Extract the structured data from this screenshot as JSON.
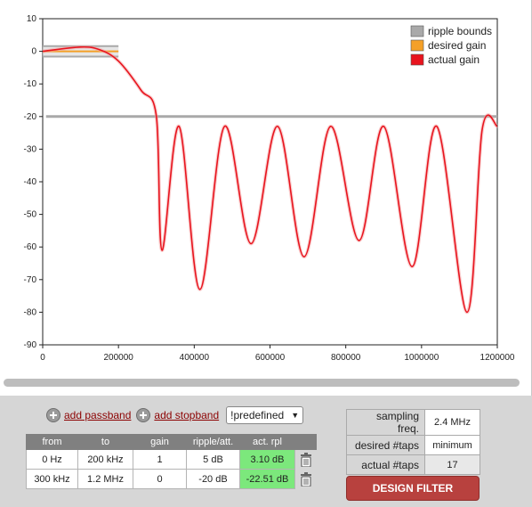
{
  "chart_data": {
    "type": "line",
    "x_ticks": [
      "0",
      "200000",
      "400000",
      "600000",
      "800000",
      "1000000",
      "1200000"
    ],
    "y_ticks": [
      "10",
      "0",
      "-10",
      "-20",
      "-30",
      "-40",
      "-50",
      "-60",
      "-70",
      "-80",
      "-90"
    ],
    "xlim": [
      0,
      1200000
    ],
    "ylim": [
      -90,
      10
    ],
    "grid": false,
    "legend_position": "top-right",
    "legend": [
      {
        "name": "ripple bounds",
        "color": "#a9a9a9"
      },
      {
        "name": "desired gain",
        "color": "#f4a028"
      },
      {
        "name": "actual gain",
        "color": "#e8141e"
      }
    ],
    "ripple_bounds": [
      {
        "x": [
          0,
          200000
        ],
        "upper": 1.6,
        "lower": -1.6
      },
      {
        "x": [
          300000,
          1200000
        ],
        "level": -20
      }
    ],
    "desired_gain": [
      {
        "x": [
          0,
          200000
        ],
        "y": 0
      }
    ],
    "actual_gain": {
      "x": [
        0,
        100000,
        150000,
        200000,
        260000,
        300000,
        315000,
        360000,
        415000,
        480000,
        550000,
        620000,
        690000,
        760000,
        835000,
        900000,
        975000,
        1040000,
        1120000,
        1160000,
        1200000
      ],
      "y": [
        0,
        1.3,
        0.5,
        -3,
        -12,
        -20,
        -61,
        -23,
        -73,
        -23,
        -59,
        -23,
        -63,
        -23,
        -58,
        -23,
        -66,
        -23,
        -80,
        -24,
        -23
      ]
    }
  },
  "controls": {
    "add_passband": "add passband",
    "add_stopband": "add stopband",
    "predefined_selected": "!predefined"
  },
  "band_table": {
    "headers": [
      "from",
      "to",
      "gain",
      "ripple/att.",
      "act. rpl"
    ],
    "rows": [
      {
        "from": "0 Hz",
        "to": "200 kHz",
        "gain": "1",
        "ripple": "5 dB",
        "act_rpl": "3.10 dB"
      },
      {
        "from": "300 kHz",
        "to": "1.2 MHz",
        "gain": "0",
        "ripple": "-20 dB",
        "act_rpl": "-22.51 dB"
      }
    ]
  },
  "params": {
    "sampling_label": "sampling freq.",
    "sampling_value": "2.4 MHz",
    "desired_taps_label": "desired #taps",
    "desired_taps_value": "minimum",
    "actual_taps_label": "actual #taps",
    "actual_taps_value": "17"
  },
  "design_button": "DESIGN FILTER",
  "colors": {
    "accent_button": "#b8413e",
    "good_ripple": "#7ce87c",
    "link": "#8b0000"
  }
}
